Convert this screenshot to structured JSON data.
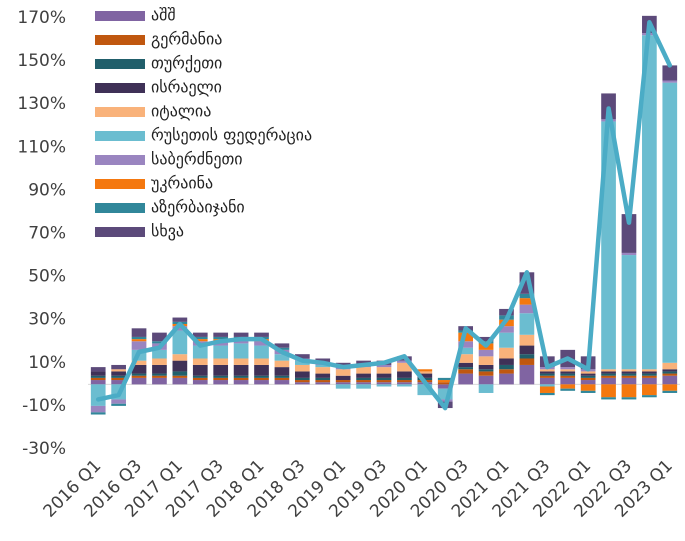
{
  "chart_data": {
    "type": "bar",
    "stacked": true,
    "categories": [
      "2016 Q1",
      null,
      "2016 Q3",
      null,
      "2017 Q1",
      null,
      "2017 Q3",
      null,
      "2018 Q1",
      null,
      "2018 Q3",
      null,
      "2019 Q1",
      null,
      "2019 Q3",
      null,
      "2020 Q1",
      null,
      "2020 Q3",
      null,
      "2021 Q1",
      null,
      "2021 Q3",
      null,
      "2022 Q1",
      null,
      "2022 Q3",
      null,
      "2023 Q1"
    ],
    "ylim": [
      -30,
      170
    ],
    "yticks": [
      {
        "value": -30,
        "label": "-30%"
      },
      {
        "value": -10,
        "label": "-10%"
      },
      {
        "value": 10,
        "label": "10%"
      },
      {
        "value": 30,
        "label": "30%"
      },
      {
        "value": 50,
        "label": "50%"
      },
      {
        "value": 70,
        "label": "70%"
      },
      {
        "value": 90,
        "label": "90%"
      },
      {
        "value": 110,
        "label": "110%"
      },
      {
        "value": 130,
        "label": "130%"
      },
      {
        "value": 150,
        "label": "150%"
      },
      {
        "value": 170,
        "label": "170%"
      }
    ],
    "legend": "top-left",
    "series": [
      {
        "name": "აშშ",
        "color": "#8064a2",
        "values": [
          2,
          2,
          3,
          3,
          3,
          2,
          2,
          2,
          2,
          2,
          1,
          1,
          1,
          1,
          1,
          1,
          1,
          -2,
          5,
          4,
          5,
          9,
          3,
          3,
          2,
          3,
          3,
          3,
          4
        ]
      },
      {
        "name": "გერმანია",
        "color": "#c0570f",
        "values": [
          1,
          1,
          1,
          1,
          1,
          1,
          1,
          1,
          1,
          1,
          1,
          1,
          1,
          1,
          1,
          1,
          1,
          1,
          2,
          2,
          2,
          3,
          1,
          1,
          1,
          1,
          1,
          1,
          1
        ]
      },
      {
        "name": "თურქეთი",
        "color": "#215f6b",
        "values": [
          1,
          1,
          1,
          1,
          2,
          1,
          1,
          1,
          1,
          1,
          1,
          1,
          0,
          1,
          1,
          1,
          1,
          0,
          1,
          1,
          2,
          2,
          1,
          1,
          1,
          1,
          1,
          1,
          1
        ]
      },
      {
        "name": "ისრაელი",
        "color": "#3f3157",
        "values": [
          2,
          2,
          4,
          4,
          5,
          5,
          5,
          5,
          5,
          4,
          3,
          2,
          2,
          2,
          2,
          3,
          2,
          0,
          2,
          2,
          3,
          4,
          1,
          1,
          1,
          1,
          1,
          1,
          1
        ]
      },
      {
        "name": "იტალია",
        "color": "#f9b27a",
        "values": [
          0,
          1,
          2,
          3,
          3,
          3,
          3,
          3,
          3,
          3,
          3,
          3,
          3,
          3,
          3,
          4,
          1,
          0,
          4,
          4,
          5,
          5,
          1,
          1,
          1,
          1,
          1,
          1,
          3
        ]
      },
      {
        "name": "რუსეთის ფედერაცია",
        "color": "#6bbdd0",
        "values": [
          -10,
          -7,
          5,
          4,
          11,
          6,
          6,
          7,
          6,
          3,
          2,
          1,
          -2,
          -2,
          -1,
          -1,
          -5,
          -5,
          3,
          -4,
          7,
          10,
          -1,
          0,
          0,
          115,
          53,
          155,
          130
        ]
      },
      {
        "name": "საბერძნეთი",
        "color": "#9a85c0",
        "values": [
          -3,
          -2,
          4,
          3,
          2,
          2,
          2,
          2,
          2,
          2,
          1,
          1,
          1,
          1,
          1,
          1,
          0,
          -1,
          3,
          3,
          3,
          4,
          1,
          1,
          1,
          1,
          1,
          1,
          1
        ]
      },
      {
        "name": "უკრაინა",
        "color": "#f4780f",
        "values": [
          0,
          0,
          1,
          0,
          1,
          1,
          1,
          0,
          1,
          0,
          0,
          0,
          0,
          0,
          0,
          0,
          1,
          1,
          4,
          3,
          3,
          3,
          -3,
          -2,
          -3,
          -6,
          -6,
          -5,
          -3
        ]
      },
      {
        "name": "აზერბაიჯანი",
        "color": "#31879a",
        "values": [
          -1,
          -1,
          1,
          1,
          1,
          1,
          1,
          1,
          1,
          1,
          0,
          0,
          0,
          0,
          0,
          0,
          0,
          1,
          1,
          1,
          2,
          2,
          -1,
          -1,
          -1,
          -1,
          -1,
          -1,
          -1
        ]
      },
      {
        "name": "სხვა",
        "color": "#5c4a7a",
        "values": [
          2,
          2,
          4,
          4,
          2,
          2,
          2,
          2,
          2,
          2,
          2,
          2,
          2,
          2,
          2,
          2,
          0,
          -3,
          2,
          2,
          3,
          10,
          5,
          8,
          6,
          12,
          18,
          8,
          7
        ]
      }
    ],
    "line": {
      "color": "#4bacc6",
      "values": [
        -7,
        -5,
        15,
        17,
        28,
        18,
        20,
        21,
        21,
        15,
        11,
        10,
        8,
        9,
        10,
        13,
        1,
        -11,
        26,
        18,
        30,
        52,
        8,
        12,
        7,
        128,
        75,
        168,
        148
      ]
    }
  }
}
